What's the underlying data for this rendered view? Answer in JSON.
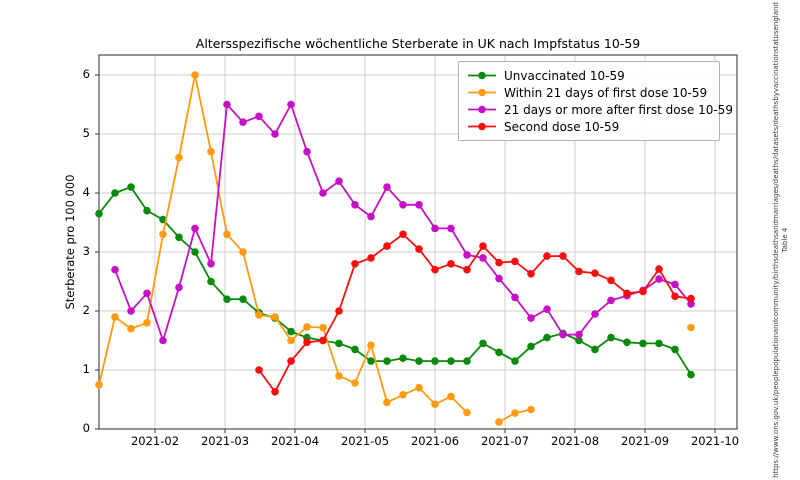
{
  "title": "Altersspezifische wöchentliche Sterberate in UK nach Impfstatus 10-59",
  "ylabel": "Sterberate pro 100 000",
  "side_note": {
    "line1": "https://www.ons.gov.uk/peoplepopulationandcommunity/birthsdeathsandmarriages/deaths/datasets/deathsbyvaccinationstatusengland",
    "line2": "Table 4"
  },
  "chart_data": {
    "type": "line",
    "title": "Altersspezifische wöchentliche Sterberate in UK nach Impfstatus 10-59",
    "xlabel": "",
    "ylabel": "Sterberate pro 100 000",
    "ylim": [
      0,
      6.34
    ],
    "grid": true,
    "legend_position": "upper right",
    "y_tick_labels": [
      "0",
      "1",
      "2",
      "3",
      "4",
      "5",
      "6"
    ],
    "x_tick_labels": [
      "2021-02",
      "2021-03",
      "2021-04",
      "2021-05",
      "2021-06",
      "2021-07",
      "2021-08",
      "2021-09",
      "2021-10"
    ],
    "x_week_ending_dates": [
      "2021-01-08",
      "2021-01-15",
      "2021-01-22",
      "2021-01-29",
      "2021-02-05",
      "2021-02-12",
      "2021-02-19",
      "2021-02-26",
      "2021-03-05",
      "2021-03-12",
      "2021-03-19",
      "2021-03-26",
      "2021-04-02",
      "2021-04-09",
      "2021-04-16",
      "2021-04-23",
      "2021-04-30",
      "2021-05-07",
      "2021-05-14",
      "2021-05-21",
      "2021-05-28",
      "2021-06-04",
      "2021-06-11",
      "2021-06-18",
      "2021-06-25",
      "2021-07-02",
      "2021-07-09",
      "2021-07-16",
      "2021-07-23",
      "2021-07-30",
      "2021-08-06",
      "2021-08-13",
      "2021-08-20",
      "2021-08-27",
      "2021-09-03",
      "2021-09-10",
      "2021-09-17",
      "2021-09-24"
    ],
    "series": [
      {
        "name": "Unvaccinated 10-59",
        "color": "#0a8a0a",
        "values": [
          3.65,
          4.0,
          4.1,
          3.7,
          3.55,
          3.25,
          3.0,
          2.5,
          2.2,
          2.2,
          1.97,
          1.88,
          1.65,
          1.55,
          1.5,
          1.45,
          1.35,
          1.15,
          1.15,
          1.2,
          1.15,
          1.15,
          1.15,
          1.15,
          1.45,
          1.3,
          1.15,
          1.4,
          1.55,
          1.62,
          1.5,
          1.35,
          1.55,
          1.47,
          1.45,
          1.45,
          1.35,
          0.92
        ]
      },
      {
        "name": "Within 21 days of first dose 10-59",
        "color": "#ff9b12",
        "values": [
          0.75,
          1.9,
          1.7,
          1.8,
          3.3,
          4.6,
          6.0,
          4.7,
          3.3,
          3.0,
          1.93,
          1.9,
          1.5,
          1.73,
          1.72,
          0.9,
          0.78,
          1.42,
          0.45,
          0.58,
          0.7,
          0.42,
          0.55,
          0.28,
          null,
          0.12,
          0.27,
          0.33,
          null,
          null,
          null,
          null,
          null,
          null,
          null,
          null,
          null,
          1.72
        ]
      },
      {
        "name": "21 days or more after first dose 10-59",
        "color": "#c411c4",
        "values": [
          null,
          2.7,
          2.0,
          2.3,
          1.5,
          2.4,
          3.4,
          2.8,
          5.5,
          5.2,
          5.3,
          5.0,
          5.5,
          4.7,
          4.0,
          4.2,
          3.8,
          3.6,
          4.1,
          3.8,
          3.8,
          3.4,
          3.4,
          2.95,
          2.9,
          2.55,
          2.23,
          1.88,
          2.03,
          1.6,
          1.6,
          1.95,
          2.18,
          2.26,
          2.35,
          2.54,
          2.45,
          2.12
        ]
      },
      {
        "name": "Second dose 10-59",
        "color": "#f50f0f",
        "values": [
          null,
          null,
          null,
          null,
          null,
          null,
          null,
          null,
          null,
          null,
          1.0,
          0.63,
          1.15,
          1.47,
          1.5,
          2.0,
          2.8,
          2.9,
          3.1,
          3.3,
          3.05,
          2.7,
          2.8,
          2.7,
          3.1,
          2.82,
          2.84,
          2.63,
          2.93,
          2.93,
          2.67,
          2.64,
          2.52,
          2.3,
          2.33,
          2.71,
          2.25,
          2.21
        ]
      }
    ]
  }
}
